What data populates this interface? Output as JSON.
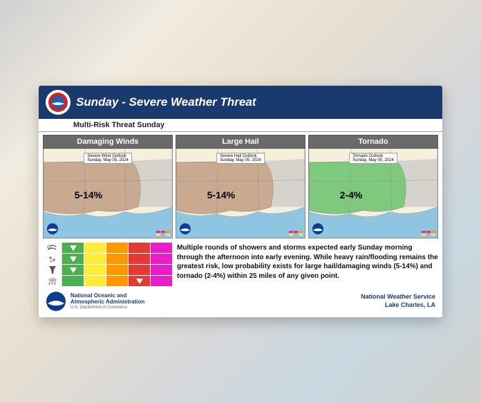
{
  "title": "Sunday - Severe Weather Threat",
  "subtitle": "Multi-Risk Threat Sunday",
  "panels": [
    {
      "name": "damaging-winds",
      "header": "Damaging Winds",
      "box_label": "Severe Wind Outlook\\nSunday, May 05, 2024",
      "range": "5-14%",
      "fill_color": "#c9a98f",
      "land_color": "#f5f0dc",
      "water_color": "#8fc5e0"
    },
    {
      "name": "large-hail",
      "header": "Large Hail",
      "box_label": "Severe Hail Outlook\\nSunday, May 05, 2024",
      "range": "5-14%",
      "fill_color": "#c9a98f",
      "land_color": "#f5f0dc",
      "water_color": "#8fc5e0"
    },
    {
      "name": "tornado",
      "header": "Tornado",
      "box_label": "Tornado Outlook\\nSunday, May 05, 2024",
      "range": "2-4%",
      "fill_color": "#7fc97f",
      "land_color": "#f5f0dc",
      "water_color": "#8fc5e0"
    }
  ],
  "risk_table": {
    "colors": [
      "#4caf50",
      "#ffeb3b",
      "#ff9800",
      "#e53935",
      "#e91ec9"
    ],
    "rows": [
      {
        "icon": "wind",
        "marker_col": 0
      },
      {
        "icon": "hail",
        "marker_col": 0
      },
      {
        "icon": "funnel",
        "marker_col": 0
      },
      {
        "icon": "rain",
        "marker_col": 3
      }
    ]
  },
  "summary": "Multiple rounds of showers and storms expected early Sunday morning through the afternoon into early evening. While heavy rain/flooding remains the greatest risk, low probability exists for large hail/damaging winds (5-14%) and tornado (2-4%) within 25 miles of any given point.",
  "footer": {
    "org_line1": "National Oceanic and",
    "org_line2": "Atmospheric Administration",
    "org_sub": "U.S. Department of Commerce",
    "right_line1": "National Weather Service",
    "right_line2": "Lake Charles, LA"
  },
  "legend_colors": [
    "#e91ec9",
    "#e53935",
    "#ff9800",
    "#ffeb3b",
    "#c9a98f",
    "#dcdcdc"
  ]
}
